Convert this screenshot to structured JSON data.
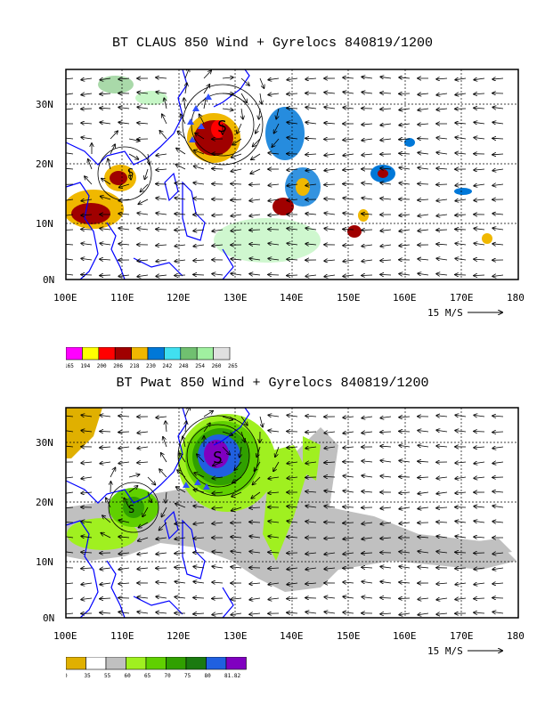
{
  "panels": [
    {
      "title": "BT CLAUS 850 Wind + Gyrelocs 840819/1200",
      "yticks": [
        "30N",
        "20N",
        "10N",
        "0N"
      ],
      "xticks": [
        "100E",
        "110E",
        "120E",
        "130E",
        "140E",
        "150E",
        "160E",
        "170E",
        "180"
      ],
      "vector_label": "15 M/S",
      "colorbar": {
        "labels": [
          "165",
          "194",
          "200",
          "206",
          "218",
          "230",
          "242",
          "248",
          "254",
          "260",
          "265"
        ],
        "colors": [
          "#ff00ff",
          "#ffff00",
          "#ff0000",
          "#a00000",
          "#f0b800",
          "#0078d8",
          "#40e0f0",
          "#70c070",
          "#a0f0a0",
          "#e0e0e0"
        ]
      }
    },
    {
      "title": "BT Pwat 850 Wind + Gyrelocs 840819/1200",
      "yticks": [
        "30N",
        "20N",
        "10N",
        "0N"
      ],
      "xticks": [
        "100E",
        "110E",
        "120E",
        "130E",
        "140E",
        "150E",
        "160E",
        "170E",
        "180"
      ],
      "vector_label": "15 M/S",
      "colorbar": {
        "labels": [
          "0",
          "35",
          "55",
          "60",
          "65",
          "70",
          "75",
          "80",
          "81.82"
        ],
        "colors": [
          "#e0b000",
          "#ffffff",
          "#c0c0c0",
          "#a0f020",
          "#60d000",
          "#30a000",
          "#1a7a10",
          "#2060e0",
          "#8000c0"
        ]
      }
    }
  ]
}
